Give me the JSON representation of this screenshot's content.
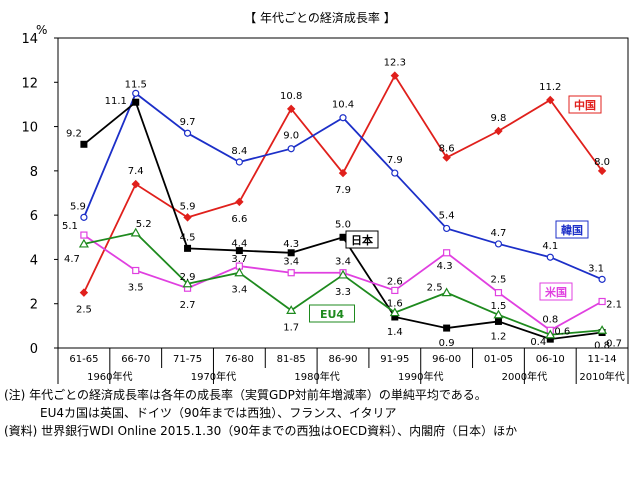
{
  "chart_data": {
    "type": "line",
    "title": "【 年代ごとの経済成長率 】",
    "yunit": "%",
    "ylim": [
      0,
      14
    ],
    "yticks": [
      0,
      2,
      4,
      6,
      8,
      10,
      12,
      14
    ],
    "grid": false,
    "categories": [
      "61-65",
      "66-70",
      "71-75",
      "76-80",
      "81-85",
      "86-90",
      "91-95",
      "96-00",
      "01-05",
      "06-10",
      "11-14"
    ],
    "decades": [
      "1960年代",
      "1970年代",
      "1980年代",
      "1990年代",
      "2000年代",
      "2010年代"
    ],
    "series": [
      {
        "name": "中国",
        "color": "#e0201c",
        "marker": "diamond",
        "values": [
          2.5,
          7.4,
          5.9,
          6.6,
          10.8,
          7.9,
          12.3,
          8.6,
          9.8,
          11.2,
          8.0
        ],
        "labels": [
          "2.5",
          "7.4",
          "5.9",
          "6.6",
          "10.8",
          "7.9",
          "12.3",
          "8.6",
          "9.8",
          "11.2",
          "8.0"
        ]
      },
      {
        "name": "韓国",
        "color": "#1c2fc8",
        "marker": "circle",
        "values": [
          5.9,
          11.5,
          9.7,
          8.4,
          9.0,
          10.4,
          7.9,
          5.4,
          4.7,
          4.1,
          3.1
        ],
        "labels": [
          "5.9",
          "11.5",
          "9.7",
          "8.4",
          "9.0",
          "10.4",
          "7.9",
          "5.4",
          "4.7",
          "4.1",
          "3.1"
        ]
      },
      {
        "name": "日本",
        "color": "#000000",
        "marker": "square",
        "values": [
          9.2,
          11.1,
          4.5,
          4.4,
          4.3,
          5.0,
          1.4,
          0.9,
          1.2,
          0.4,
          0.7
        ],
        "labels": [
          "9.2",
          "11.1",
          "4.5",
          "4.4",
          "4.3",
          "5.0",
          "1.4",
          "0.9",
          "1.2",
          "0.4",
          "0.7"
        ]
      },
      {
        "name": "米国",
        "color": "#e040e0",
        "marker": "square-open",
        "values": [
          5.1,
          3.5,
          2.7,
          3.7,
          3.4,
          3.4,
          2.6,
          4.3,
          2.5,
          0.8,
          2.1
        ],
        "labels": [
          "5.1",
          "3.5",
          "2.7",
          "3.7",
          "3.4",
          "3.4",
          "2.6",
          "4.3",
          "2.5",
          "0.8",
          "2.1"
        ]
      },
      {
        "name": "EU4",
        "color": "#1e8a1e",
        "marker": "triangle",
        "values": [
          4.7,
          5.2,
          2.9,
          3.4,
          1.7,
          3.3,
          1.6,
          2.5,
          1.5,
          0.6,
          0.8
        ],
        "labels": [
          "4.7",
          "5.2",
          "2.9",
          "3.4",
          "1.7",
          "3.3",
          "1.6",
          "2.5",
          "1.5",
          "0.6",
          "0.8"
        ]
      }
    ]
  },
  "notes": [
    "(注) 年代ごとの経済成長率は各年の成長率（実質GDP対前年増減率）の単純平均である。",
    "EU4カ国は英国、ドイツ（90年までは西独）、フランス、イタリア",
    "(資料) 世界銀行WDI Online 2015.1.30（90年までの西独はOECD資料）、内閣府（日本）ほか"
  ]
}
